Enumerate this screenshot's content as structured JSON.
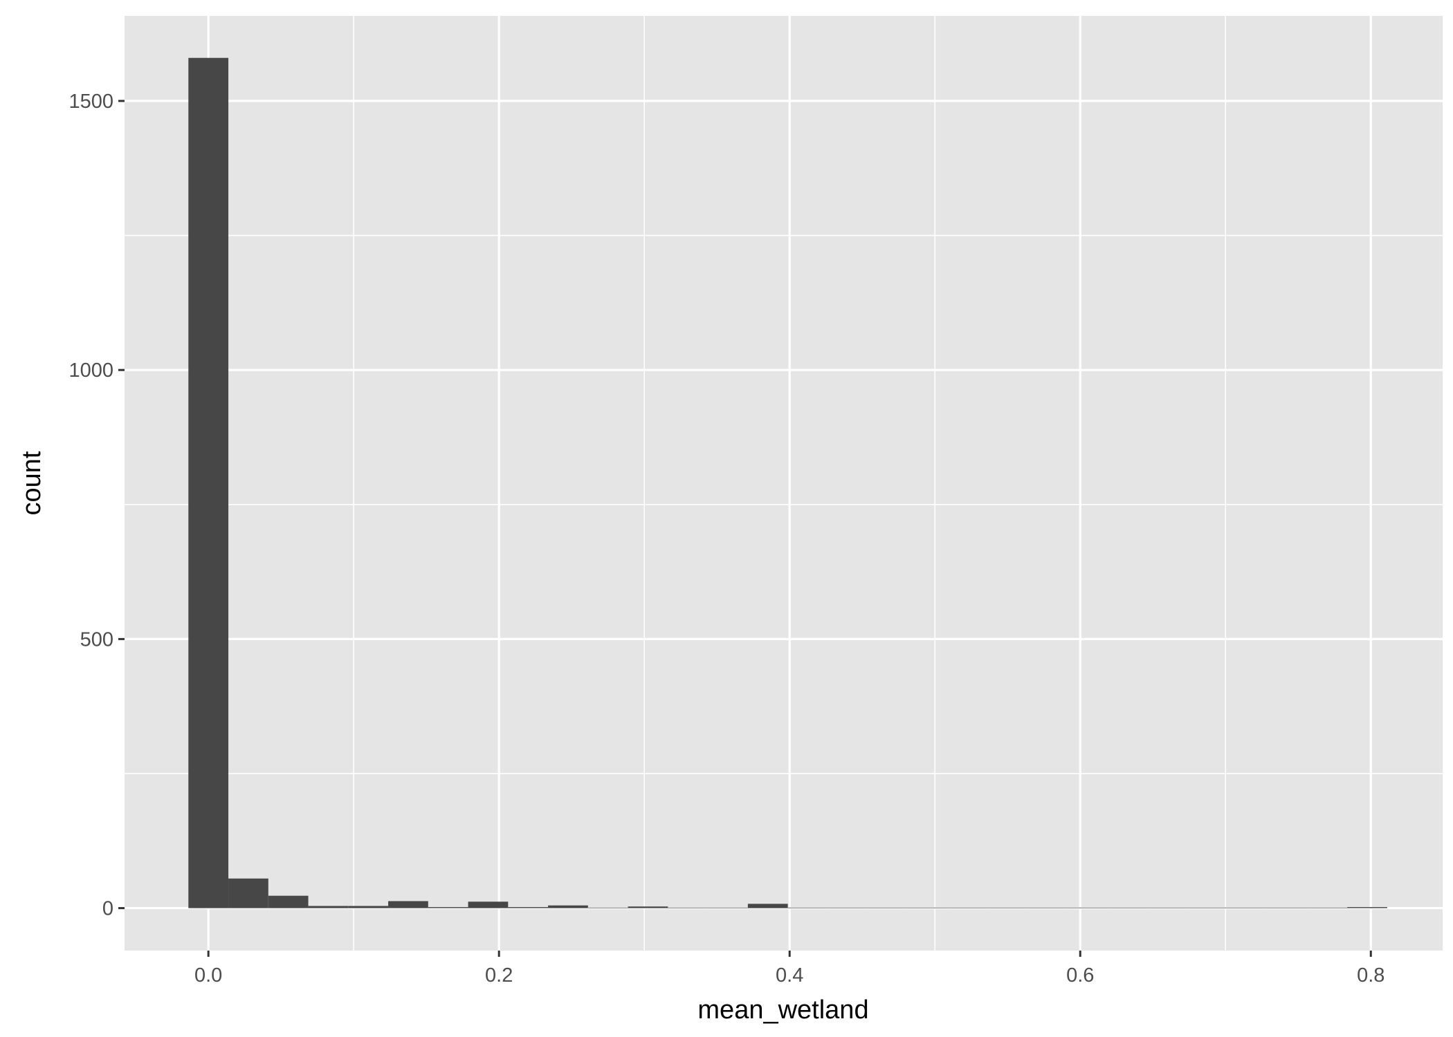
{
  "chart_data": {
    "type": "bar",
    "subtype": "histogram",
    "xlabel": "mean_wetland",
    "ylabel": "count",
    "xlim": [
      -0.0577,
      0.8494
    ],
    "ylim": [
      -78.9,
      1658
    ],
    "x_ticks": [
      0.0,
      0.2,
      0.4,
      0.6,
      0.8
    ],
    "x_tick_labels": [
      "0.0",
      "0.2",
      "0.4",
      "0.6",
      "0.8"
    ],
    "y_ticks": [
      0,
      500,
      1000,
      1500
    ],
    "y_tick_labels": [
      "0",
      "500",
      "1000",
      "1500"
    ],
    "grid": true,
    "bin_width": 0.0275,
    "bin_centers": [
      0.0,
      0.0275,
      0.055,
      0.0825,
      0.11,
      0.1375,
      0.165,
      0.1925,
      0.22,
      0.2475,
      0.275,
      0.3025,
      0.33,
      0.3575,
      0.385,
      0.4125,
      0.44,
      0.4675,
      0.495,
      0.5225,
      0.55,
      0.5775,
      0.605,
      0.6325,
      0.66,
      0.6875,
      0.715,
      0.7425,
      0.77,
      0.7975
    ],
    "values": [
      1580,
      55,
      23,
      4,
      4,
      13,
      1,
      12,
      1,
      5,
      0,
      3,
      0,
      0,
      8,
      0,
      0,
      0,
      0,
      0,
      0,
      0,
      0,
      0,
      0,
      0,
      0,
      0,
      0,
      1
    ],
    "bar_color": "#474747",
    "panel_background": "#e5e5e5",
    "grid_color": "#ffffff"
  }
}
